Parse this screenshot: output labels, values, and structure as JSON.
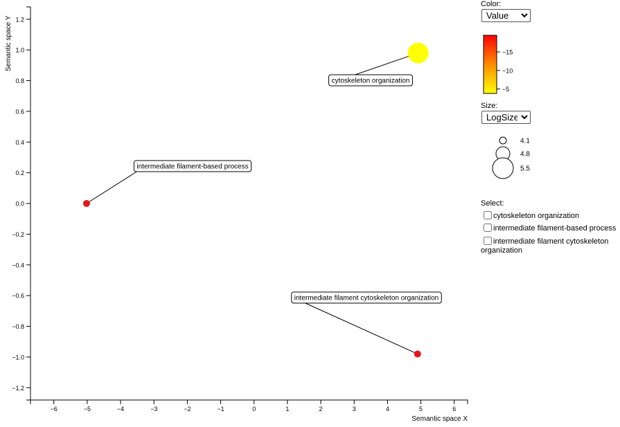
{
  "chart_data": {
    "type": "scatter",
    "xlabel": "Semantic space X",
    "ylabel": "Semantic space Y",
    "xlim": [
      -6.7,
      6.4
    ],
    "ylim": [
      -1.28,
      1.28
    ],
    "xticks": [
      -6,
      -5,
      -4,
      -3,
      -2,
      -1,
      0,
      1,
      2,
      3,
      4,
      5,
      6
    ],
    "yticks": [
      1.2,
      1.0,
      0.8,
      0.6,
      0.4,
      0.2,
      0.0,
      -0.2,
      -0.4,
      -0.6,
      -0.8,
      -1.0,
      -1.2
    ],
    "xtick_labels": [
      "−6",
      "−5",
      "−4",
      "−3",
      "−2",
      "−1",
      "0",
      "1",
      "2",
      "3",
      "4",
      "5",
      "6"
    ],
    "ytick_labels": [
      "1.2",
      "1.0",
      "0.8",
      "0.6",
      "0.4",
      "0.2",
      "0.0",
      "−0.2",
      "−0.4",
      "−0.6",
      "−0.8",
      "−1.0",
      "−1.2"
    ],
    "grid": false,
    "points": [
      {
        "label": "cytoskeleton organization",
        "x": 4.92,
        "y": 0.98,
        "size": 5.5,
        "value": -3,
        "color": "#ffff00"
      },
      {
        "label": "intermediate filament-based process",
        "x": -5.02,
        "y": 0.0,
        "size": 4.1,
        "value": -19,
        "color": "#e8141a"
      },
      {
        "label": "intermediate filament cytoskeleton organization",
        "x": 4.9,
        "y": -0.98,
        "size": 4.1,
        "value": -19,
        "color": "#e8141a"
      }
    ]
  },
  "controls": {
    "color_label": "Color:",
    "color_value": "Value",
    "size_label": "Size:",
    "size_value": "LogSize",
    "select_label": "Select:"
  },
  "color_legend": {
    "ticks": [
      -15,
      -10,
      -5
    ],
    "tick_labels": [
      "−15",
      "−10",
      "−5"
    ],
    "min": -19.5,
    "max": -3.8,
    "colors": [
      "#ffff00",
      "#ff8c00",
      "#ff0000"
    ]
  },
  "size_legend": {
    "values": [
      4.1,
      4.8,
      5.5
    ],
    "labels": [
      "4.1",
      "4.8",
      "5.5"
    ]
  },
  "select_items": [
    {
      "label": "cytoskeleton organization"
    },
    {
      "label": "intermediate filament-based process"
    },
    {
      "label": "intermediate filament cytoskeleton organization"
    }
  ]
}
